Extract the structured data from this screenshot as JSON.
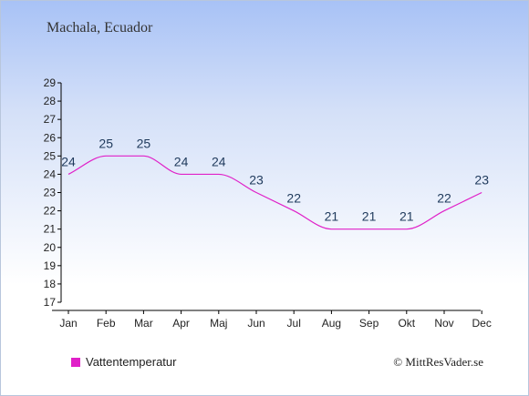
{
  "location_title": "Machala, Ecuador",
  "credit": "© MittResVader.se",
  "colors": {
    "series": "#e020c8",
    "label": "#1f3a5c",
    "axis": "#000000"
  },
  "chart_data": {
    "type": "line",
    "title": "Machala, Ecuador",
    "categories": [
      "Jan",
      "Feb",
      "Mar",
      "Apr",
      "Maj",
      "Jun",
      "Jul",
      "Aug",
      "Sep",
      "Okt",
      "Nov",
      "Dec"
    ],
    "series": [
      {
        "name": "Vattentemperatur",
        "values": [
          24,
          25,
          25,
          24,
          24,
          23,
          22,
          21,
          21,
          21,
          22,
          23
        ]
      }
    ],
    "ylim": [
      17,
      29
    ],
    "yticks": [
      17,
      18,
      19,
      20,
      21,
      22,
      23,
      24,
      25,
      26,
      27,
      28,
      29
    ],
    "grid": false,
    "legend_position": "bottom-left"
  }
}
